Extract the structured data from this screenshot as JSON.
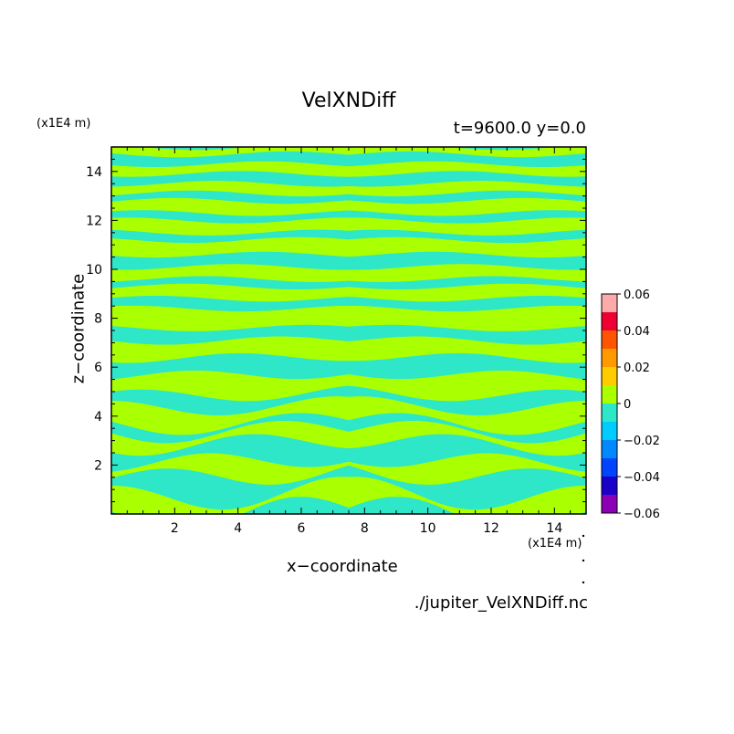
{
  "chart_data": {
    "type": "heatmap",
    "title": "VelXNDiff",
    "subtitle": "t=9600.0 y=0.0",
    "xlabel": "x−coordinate",
    "ylabel": "z−coordinate",
    "x_unit": "(x1E4 m)",
    "y_unit": "(x1E4 m)",
    "xlim": [
      0,
      15
    ],
    "ylim": [
      0,
      15
    ],
    "x_ticks": [
      "2",
      "4",
      "6",
      "8",
      "10",
      "12",
      "14"
    ],
    "y_ticks": [
      "2",
      "4",
      "6",
      "8",
      "10",
      "12",
      "14"
    ],
    "grid": false,
    "colorbar": {
      "ticks": [
        "0.06",
        "0.04",
        "0.02",
        "0",
        "−0.02",
        "−0.04",
        "−0.06"
      ],
      "range": [
        -0.06,
        0.06
      ],
      "colors": [
        "#8b00b4",
        "#1a00c8",
        "#0044ff",
        "#0088ff",
        "#00ccff",
        "#2ee6c8",
        "#aaff00",
        "#ffcc00",
        "#ff9900",
        "#ff5500",
        "#ee0033",
        "#ffaaaa"
      ]
    },
    "field_values": {
      "positive_band": 0.005,
      "negative_band": -0.005
    },
    "bands_z": [
      [
        0.0,
        0.8,
        "pos"
      ],
      [
        0.8,
        1.6,
        "neg"
      ],
      [
        1.6,
        2.2,
        "pos"
      ],
      [
        2.2,
        2.9,
        "neg"
      ],
      [
        2.9,
        3.4,
        "pos"
      ],
      [
        3.4,
        3.7,
        "neg"
      ],
      [
        3.7,
        4.4,
        "pos"
      ],
      [
        4.4,
        4.9,
        "neg"
      ],
      [
        4.9,
        5.7,
        "pos"
      ],
      [
        5.7,
        6.4,
        "neg"
      ],
      [
        6.4,
        7.1,
        "pos"
      ],
      [
        7.1,
        7.6,
        "neg"
      ],
      [
        7.6,
        8.4,
        "pos"
      ],
      [
        8.4,
        8.8,
        "neg"
      ],
      [
        8.8,
        9.3,
        "pos"
      ],
      [
        9.3,
        9.6,
        "neg"
      ],
      [
        9.6,
        10.1,
        "pos"
      ],
      [
        10.1,
        10.6,
        "neg"
      ],
      [
        10.6,
        11.2,
        "pos"
      ],
      [
        11.2,
        11.5,
        "neg"
      ],
      [
        11.5,
        12.0,
        "pos"
      ],
      [
        12.0,
        12.3,
        "neg"
      ],
      [
        12.3,
        12.8,
        "pos"
      ],
      [
        12.8,
        13.1,
        "neg"
      ],
      [
        13.1,
        13.5,
        "pos"
      ],
      [
        13.5,
        13.9,
        "neg"
      ],
      [
        13.9,
        14.3,
        "pos"
      ],
      [
        14.3,
        14.7,
        "neg"
      ],
      [
        14.7,
        15.0,
        "pos"
      ]
    ],
    "background": "neg",
    "symmetry_axis_x": 7.5
  },
  "file_label": "./jupiter_VelXNDiff.nc"
}
